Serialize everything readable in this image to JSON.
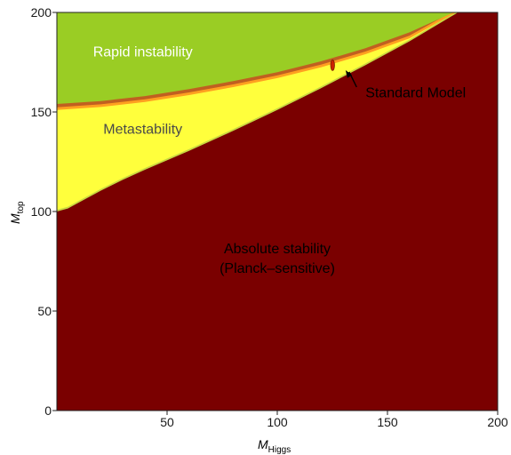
{
  "chart_data": {
    "type": "area",
    "xlabel_main": "M",
    "xlabel_sub": "Higgs",
    "ylabel_main": "M",
    "ylabel_sub": "top",
    "xlim": [
      0,
      200
    ],
    "ylim": [
      0,
      200
    ],
    "x_ticks": [
      50,
      100,
      150,
      200
    ],
    "y_ticks": [
      0,
      50,
      100,
      150,
      200
    ],
    "grid": false,
    "regions": [
      {
        "label": "Rapid instability",
        "color": "#7a0000",
        "label_x": 39,
        "label_y": 178,
        "label_color": "#ffffff"
      },
      {
        "label": "Metastability",
        "color": "#ffff3c",
        "label_x": 39,
        "label_y": 139,
        "label_color": "#4a4a4a"
      },
      {
        "label": "Absolute stability",
        "label_line2": "(Planck–sensitive)",
        "color": "#9acd24",
        "label_x": 100,
        "label_y": 79,
        "label_color": "#000000"
      }
    ],
    "boundaries": {
      "instability_upper": {
        "x": [
          0,
          20,
          40,
          60,
          80,
          100,
          120,
          140,
          160,
          180
        ],
        "y": [
          154,
          155.5,
          158,
          161.5,
          165.5,
          170,
          175.5,
          182,
          190,
          200
        ]
      },
      "metastability_upper": {
        "x": [
          0,
          20,
          40,
          60,
          80,
          100,
          120,
          140,
          160,
          181
        ],
        "y": [
          151,
          152.5,
          155,
          158.5,
          162.5,
          167,
          172.5,
          179,
          187,
          200
        ]
      },
      "metastability_lower": {
        "x": [
          0,
          5,
          10,
          20,
          30,
          40,
          60,
          80,
          100,
          120,
          140,
          160,
          182
        ],
        "y": [
          100,
          101.5,
          104.5,
          110.5,
          116,
          121,
          130.5,
          140.5,
          151,
          162,
          173.5,
          185.5,
          200
        ]
      }
    },
    "point": {
      "label": "Standard Model",
      "x": 125.1,
      "y": 173.5,
      "color": "#cc2200",
      "label_x": 140,
      "label_y": 159.5,
      "arrow_from": [
        131,
        171
      ]
    },
    "colors": {
      "instability_band": "#c06020",
      "meta_band": "#ffa020",
      "stable_edge": "#c8d840"
    }
  }
}
